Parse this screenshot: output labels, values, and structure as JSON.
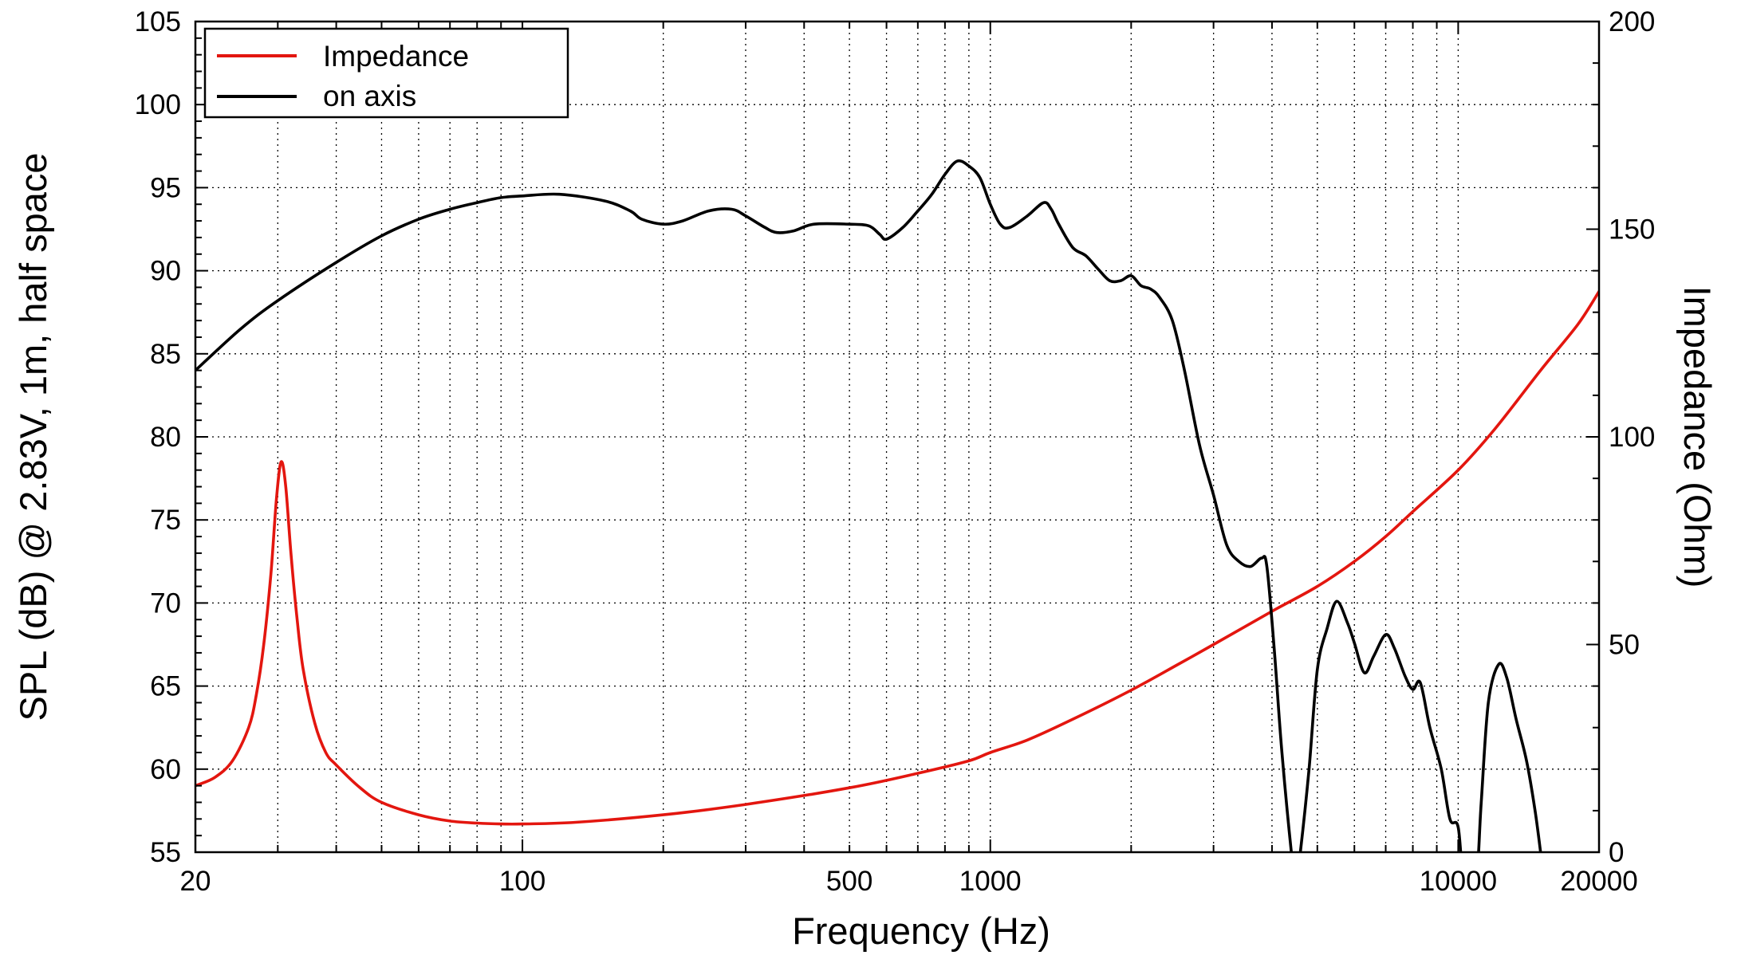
{
  "chart_data": {
    "type": "line",
    "xlabel": "Frequency (Hz)",
    "ylabel_left": "SPL (dB) @ 2.83V, 1m, half space",
    "ylabel_right": "Impedance (Ohm)",
    "x_scale": "log",
    "xlim": [
      20,
      20000
    ],
    "ylim_left": [
      55,
      105
    ],
    "ylim_right": [
      0,
      200
    ],
    "x_ticks": [
      20,
      100,
      500,
      1000,
      10000,
      20000
    ],
    "x_tick_labels": [
      "20",
      "100",
      "500",
      "1000",
      "10000",
      "20000"
    ],
    "y_left_ticks": [
      55,
      60,
      65,
      70,
      75,
      80,
      85,
      90,
      95,
      100,
      105
    ],
    "y_left_tick_labels": [
      "55",
      "60",
      "65",
      "70",
      "75",
      "80",
      "85",
      "90",
      "95",
      "100",
      "105"
    ],
    "y_right_ticks": [
      0,
      50,
      100,
      150,
      200
    ],
    "y_right_tick_labels": [
      "0",
      "50",
      "100",
      "150",
      "200"
    ],
    "grid": true,
    "legend_position": "top-left",
    "legend": [
      "Impedance",
      "on axis"
    ],
    "series": [
      {
        "name": "Impedance",
        "axis": "right",
        "color": "#e3160f",
        "points": [
          [
            20,
            16
          ],
          [
            22,
            18
          ],
          [
            24,
            22
          ],
          [
            26,
            30
          ],
          [
            27,
            38
          ],
          [
            28,
            50
          ],
          [
            29,
            67
          ],
          [
            29.8,
            85
          ],
          [
            30.5,
            94
          ],
          [
            31.2,
            88
          ],
          [
            32,
            72
          ],
          [
            33,
            56
          ],
          [
            34,
            44
          ],
          [
            36,
            31
          ],
          [
            38,
            24
          ],
          [
            40,
            21
          ],
          [
            45,
            15.5
          ],
          [
            50,
            12
          ],
          [
            60,
            9
          ],
          [
            70,
            7.5
          ],
          [
            80,
            7
          ],
          [
            90,
            6.8
          ],
          [
            100,
            6.8
          ],
          [
            130,
            7.2
          ],
          [
            200,
            9
          ],
          [
            300,
            11.5
          ],
          [
            500,
            15.5
          ],
          [
            700,
            19
          ],
          [
            900,
            22
          ],
          [
            1000,
            24
          ],
          [
            1200,
            27
          ],
          [
            1500,
            32
          ],
          [
            2000,
            39
          ],
          [
            2500,
            45
          ],
          [
            3000,
            50
          ],
          [
            4000,
            58
          ],
          [
            5000,
            64
          ],
          [
            6000,
            70
          ],
          [
            7000,
            76
          ],
          [
            8000,
            82
          ],
          [
            10000,
            92
          ],
          [
            12000,
            102
          ],
          [
            15000,
            116
          ],
          [
            18000,
            127
          ],
          [
            20000,
            135
          ]
        ]
      },
      {
        "name": "on axis",
        "axis": "left",
        "color": "#000000",
        "points": [
          [
            20,
            84
          ],
          [
            25,
            86.5
          ],
          [
            30,
            88.2
          ],
          [
            40,
            90.5
          ],
          [
            50,
            92.1
          ],
          [
            60,
            93.1
          ],
          [
            70,
            93.7
          ],
          [
            80,
            94.1
          ],
          [
            90,
            94.4
          ],
          [
            100,
            94.5
          ],
          [
            120,
            94.6
          ],
          [
            150,
            94.2
          ],
          [
            170,
            93.6
          ],
          [
            180,
            93.1
          ],
          [
            200,
            92.8
          ],
          [
            220,
            93.0
          ],
          [
            250,
            93.6
          ],
          [
            280,
            93.7
          ],
          [
            300,
            93.3
          ],
          [
            330,
            92.6
          ],
          [
            350,
            92.3
          ],
          [
            380,
            92.4
          ],
          [
            420,
            92.8
          ],
          [
            500,
            92.8
          ],
          [
            550,
            92.7
          ],
          [
            580,
            92.2
          ],
          [
            600,
            91.9
          ],
          [
            650,
            92.6
          ],
          [
            700,
            93.6
          ],
          [
            750,
            94.6
          ],
          [
            800,
            95.8
          ],
          [
            850,
            96.6
          ],
          [
            900,
            96.3
          ],
          [
            950,
            95.6
          ],
          [
            1000,
            94.0
          ],
          [
            1050,
            92.8
          ],
          [
            1100,
            92.6
          ],
          [
            1200,
            93.3
          ],
          [
            1300,
            94.1
          ],
          [
            1350,
            93.7
          ],
          [
            1400,
            92.8
          ],
          [
            1500,
            91.4
          ],
          [
            1600,
            90.9
          ],
          [
            1700,
            90.1
          ],
          [
            1800,
            89.4
          ],
          [
            1900,
            89.4
          ],
          [
            2000,
            89.7
          ],
          [
            2100,
            89.1
          ],
          [
            2200,
            88.9
          ],
          [
            2300,
            88.4
          ],
          [
            2450,
            87.0
          ],
          [
            2600,
            84.0
          ],
          [
            2800,
            79.5
          ],
          [
            3000,
            76.5
          ],
          [
            3200,
            73.5
          ],
          [
            3400,
            72.5
          ],
          [
            3600,
            72.2
          ],
          [
            3800,
            72.7
          ],
          [
            3900,
            72.2
          ],
          [
            4050,
            67.0
          ],
          [
            4200,
            61.0
          ],
          [
            4400,
            55.0
          ],
          [
            4500,
            53.0
          ],
          [
            4600,
            55.0
          ],
          [
            4800,
            60.0
          ],
          [
            5000,
            66.0
          ],
          [
            5250,
            68.5
          ],
          [
            5500,
            70.1
          ],
          [
            5800,
            68.8
          ],
          [
            6000,
            67.6
          ],
          [
            6300,
            65.8
          ],
          [
            6600,
            66.8
          ],
          [
            7000,
            68.1
          ],
          [
            7300,
            67.3
          ],
          [
            7700,
            65.6
          ],
          [
            8000,
            64.8
          ],
          [
            8300,
            65.2
          ],
          [
            8700,
            62.5
          ],
          [
            9200,
            60.0
          ],
          [
            9600,
            57.0
          ],
          [
            10000,
            56.5
          ],
          [
            10300,
            53.0
          ],
          [
            10900,
            53.0
          ],
          [
            11200,
            58.0
          ],
          [
            11600,
            64.0
          ],
          [
            12200,
            66.3
          ],
          [
            12700,
            65.5
          ],
          [
            13300,
            63.0
          ],
          [
            14000,
            60.5
          ],
          [
            14600,
            57.5
          ],
          [
            15000,
            55.0
          ]
        ]
      }
    ]
  }
}
